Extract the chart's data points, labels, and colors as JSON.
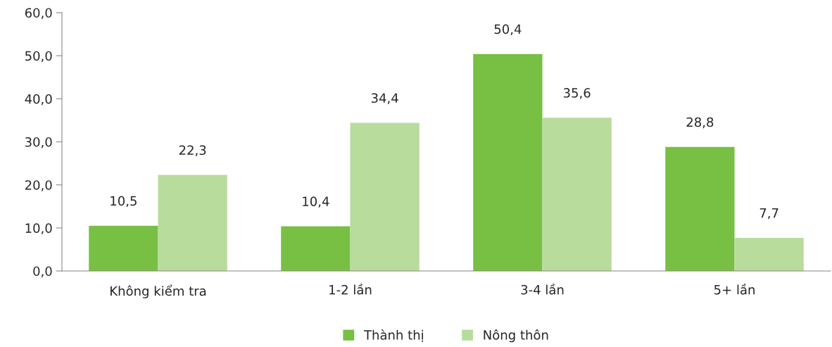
{
  "chart_data": {
    "type": "bar",
    "categories": [
      "Không kiểm tra",
      "1-2 lần",
      "3-4 lần",
      "5+ lần"
    ],
    "series": [
      {
        "name": "Thành thị",
        "color": "#77c043",
        "values": [
          10.5,
          10.4,
          50.4,
          28.8
        ],
        "value_labels": [
          "10,5",
          "10,4",
          "50,4",
          "28,8"
        ]
      },
      {
        "name": "Nông thôn",
        "color": "#b8dc9b",
        "values": [
          22.3,
          34.4,
          35.6,
          7.7
        ],
        "value_labels": [
          "22,3",
          "34,4",
          "35,6",
          "7,7"
        ]
      }
    ],
    "ylim": [
      0,
      60
    ],
    "yticks": [
      {
        "value": 0,
        "label": "0,0"
      },
      {
        "value": 10,
        "label": "10,0"
      },
      {
        "value": 20,
        "label": "20,0"
      },
      {
        "value": 30,
        "label": "30,0"
      },
      {
        "value": 40,
        "label": "40,0"
      },
      {
        "value": 50,
        "label": "50,0"
      },
      {
        "value": 60,
        "label": "60,0"
      }
    ],
    "grid": false,
    "legend": "bottom"
  }
}
